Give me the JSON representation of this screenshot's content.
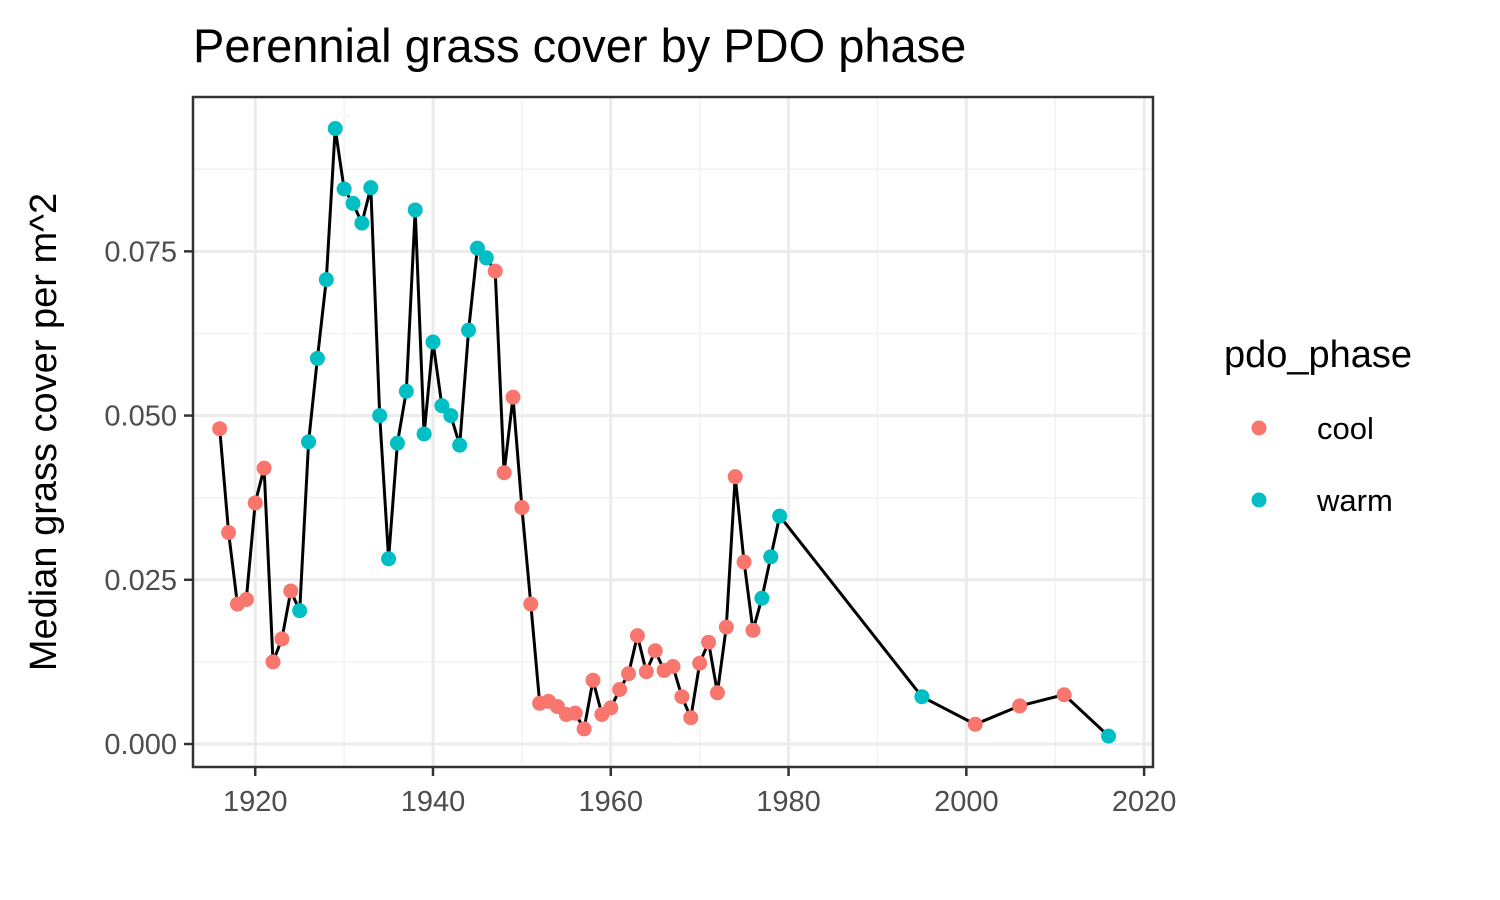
{
  "chart_data": {
    "type": "line",
    "title": "Perennial grass cover by PDO phase",
    "xlabel": "",
    "ylabel": "Median grass cover per m^2",
    "xlim": [
      1913,
      2021
    ],
    "ylim": [
      -0.0035,
      0.0985
    ],
    "x_ticks": [
      1920,
      1940,
      1960,
      1980,
      2000,
      2020
    ],
    "x_tick_labels": [
      "1920",
      "1940",
      "1960",
      "1980",
      "2000",
      "2020"
    ],
    "y_ticks": [
      0,
      0.025,
      0.05,
      0.075
    ],
    "y_tick_labels": [
      "0.000",
      "0.025",
      "0.050",
      "0.075"
    ],
    "grid": true,
    "legend": {
      "title": "pdo_phase",
      "position": "right",
      "entries": [
        {
          "label": "cool",
          "color": "#F8766D"
        },
        {
          "label": "warm",
          "color": "#00BFC4"
        }
      ]
    },
    "line_color": "#000000",
    "points": [
      {
        "x": 1916,
        "y": 0.048,
        "phase": "cool"
      },
      {
        "x": 1917,
        "y": 0.0322,
        "phase": "cool"
      },
      {
        "x": 1918,
        "y": 0.0213,
        "phase": "cool"
      },
      {
        "x": 1919,
        "y": 0.022,
        "phase": "cool"
      },
      {
        "x": 1920,
        "y": 0.0367,
        "phase": "cool"
      },
      {
        "x": 1921,
        "y": 0.042,
        "phase": "cool"
      },
      {
        "x": 1922,
        "y": 0.0125,
        "phase": "cool"
      },
      {
        "x": 1923,
        "y": 0.016,
        "phase": "cool"
      },
      {
        "x": 1924,
        "y": 0.0233,
        "phase": "cool"
      },
      {
        "x": 1925,
        "y": 0.0203,
        "phase": "warm"
      },
      {
        "x": 1926,
        "y": 0.046,
        "phase": "warm"
      },
      {
        "x": 1927,
        "y": 0.0587,
        "phase": "warm"
      },
      {
        "x": 1928,
        "y": 0.0707,
        "phase": "warm"
      },
      {
        "x": 1929,
        "y": 0.0937,
        "phase": "warm"
      },
      {
        "x": 1930,
        "y": 0.0845,
        "phase": "warm"
      },
      {
        "x": 1931,
        "y": 0.0823,
        "phase": "warm"
      },
      {
        "x": 1932,
        "y": 0.0793,
        "phase": "warm"
      },
      {
        "x": 1933,
        "y": 0.0847,
        "phase": "warm"
      },
      {
        "x": 1934,
        "y": 0.05,
        "phase": "warm"
      },
      {
        "x": 1935,
        "y": 0.0282,
        "phase": "warm"
      },
      {
        "x": 1936,
        "y": 0.0458,
        "phase": "warm"
      },
      {
        "x": 1937,
        "y": 0.0537,
        "phase": "warm"
      },
      {
        "x": 1938,
        "y": 0.0813,
        "phase": "warm"
      },
      {
        "x": 1939,
        "y": 0.0472,
        "phase": "warm"
      },
      {
        "x": 1940,
        "y": 0.0612,
        "phase": "warm"
      },
      {
        "x": 1941,
        "y": 0.0515,
        "phase": "warm"
      },
      {
        "x": 1942,
        "y": 0.05,
        "phase": "warm"
      },
      {
        "x": 1943,
        "y": 0.0455,
        "phase": "warm"
      },
      {
        "x": 1944,
        "y": 0.063,
        "phase": "warm"
      },
      {
        "x": 1945,
        "y": 0.0755,
        "phase": "warm"
      },
      {
        "x": 1946,
        "y": 0.074,
        "phase": "warm"
      },
      {
        "x": 1947,
        "y": 0.072,
        "phase": "cool"
      },
      {
        "x": 1948,
        "y": 0.0413,
        "phase": "cool"
      },
      {
        "x": 1949,
        "y": 0.0528,
        "phase": "cool"
      },
      {
        "x": 1950,
        "y": 0.036,
        "phase": "cool"
      },
      {
        "x": 1951,
        "y": 0.0213,
        "phase": "cool"
      },
      {
        "x": 1952,
        "y": 0.0062,
        "phase": "cool"
      },
      {
        "x": 1953,
        "y": 0.0065,
        "phase": "cool"
      },
      {
        "x": 1954,
        "y": 0.0057,
        "phase": "cool"
      },
      {
        "x": 1955,
        "y": 0.0045,
        "phase": "cool"
      },
      {
        "x": 1956,
        "y": 0.0047,
        "phase": "cool"
      },
      {
        "x": 1957,
        "y": 0.0023,
        "phase": "cool"
      },
      {
        "x": 1958,
        "y": 0.0097,
        "phase": "cool"
      },
      {
        "x": 1959,
        "y": 0.0045,
        "phase": "cool"
      },
      {
        "x": 1960,
        "y": 0.0055,
        "phase": "cool"
      },
      {
        "x": 1961,
        "y": 0.0083,
        "phase": "cool"
      },
      {
        "x": 1962,
        "y": 0.0107,
        "phase": "cool"
      },
      {
        "x": 1963,
        "y": 0.0165,
        "phase": "cool"
      },
      {
        "x": 1964,
        "y": 0.011,
        "phase": "cool"
      },
      {
        "x": 1965,
        "y": 0.0142,
        "phase": "cool"
      },
      {
        "x": 1966,
        "y": 0.0112,
        "phase": "cool"
      },
      {
        "x": 1967,
        "y": 0.0118,
        "phase": "cool"
      },
      {
        "x": 1968,
        "y": 0.0072,
        "phase": "cool"
      },
      {
        "x": 1969,
        "y": 0.004,
        "phase": "cool"
      },
      {
        "x": 1970,
        "y": 0.0123,
        "phase": "cool"
      },
      {
        "x": 1971,
        "y": 0.0155,
        "phase": "cool"
      },
      {
        "x": 1972,
        "y": 0.0078,
        "phase": "cool"
      },
      {
        "x": 1973,
        "y": 0.0178,
        "phase": "cool"
      },
      {
        "x": 1974,
        "y": 0.0407,
        "phase": "cool"
      },
      {
        "x": 1975,
        "y": 0.0277,
        "phase": "cool"
      },
      {
        "x": 1976,
        "y": 0.0173,
        "phase": "cool"
      },
      {
        "x": 1977,
        "y": 0.0222,
        "phase": "warm"
      },
      {
        "x": 1978,
        "y": 0.0285,
        "phase": "warm"
      },
      {
        "x": 1979,
        "y": 0.0347,
        "phase": "warm"
      },
      {
        "x": 1995,
        "y": 0.0072,
        "phase": "warm"
      },
      {
        "x": 2001,
        "y": 0.003,
        "phase": "cool"
      },
      {
        "x": 2006,
        "y": 0.0058,
        "phase": "cool"
      },
      {
        "x": 2011,
        "y": 0.0075,
        "phase": "cool"
      },
      {
        "x": 2016,
        "y": 0.0012,
        "phase": "warm"
      }
    ]
  }
}
